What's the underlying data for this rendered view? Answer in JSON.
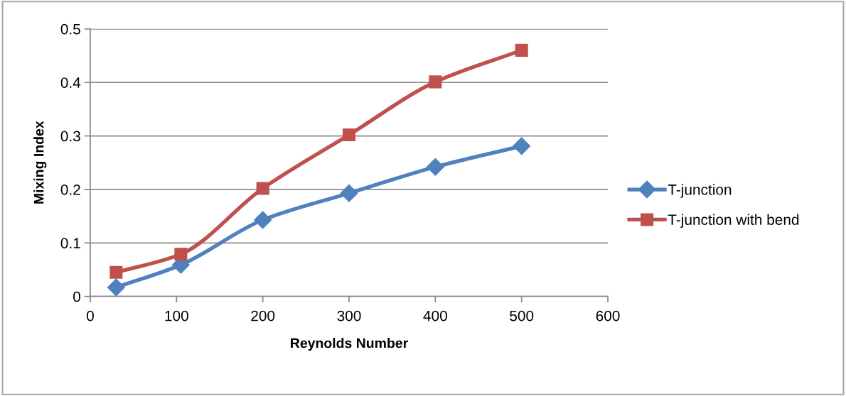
{
  "chart_data": {
    "type": "line",
    "xlabel": "Reynolds Number",
    "ylabel": "Mixing Index",
    "x": [
      30,
      105,
      200,
      300,
      400,
      500
    ],
    "series": [
      {
        "name": "T-junction",
        "color": "#4f81bd",
        "marker": "diamond",
        "values": [
          0.017,
          0.059,
          0.143,
          0.193,
          0.242,
          0.281
        ]
      },
      {
        "name": "T-junction with bend",
        "color": "#c0504d",
        "marker": "square",
        "values": [
          0.045,
          0.079,
          0.202,
          0.302,
          0.401,
          0.46
        ]
      }
    ],
    "xlim": [
      0,
      600
    ],
    "xticks": [
      0,
      100,
      200,
      300,
      400,
      500,
      600
    ],
    "ylim": [
      0,
      0.5
    ],
    "yticks": [
      0,
      0.1,
      0.2,
      0.3,
      0.4,
      0.5
    ],
    "grid": "y",
    "legend": "right",
    "line_style": "solid"
  }
}
